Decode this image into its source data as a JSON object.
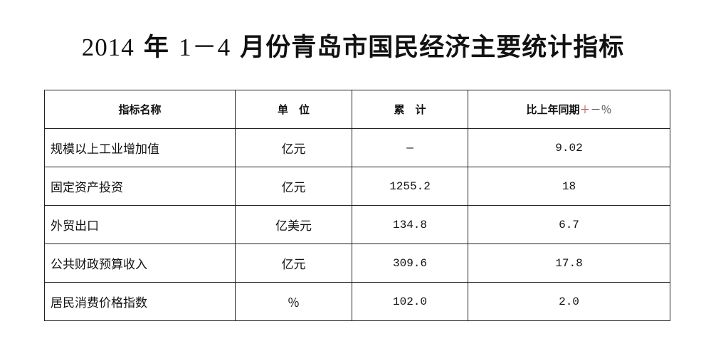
{
  "title": {
    "year": "2014",
    "nian": "年",
    "range": "1－4",
    "rest": "月份青岛市国民经济主要统计指标"
  },
  "table": {
    "headers": [
      "指标名称",
      "单　位",
      "累　计",
      "比上年同期"
    ],
    "header_suffix_plus": "＋",
    "header_suffix_rest": "－％",
    "rows": [
      {
        "name": "规模以上工业增加值",
        "unit": "亿元",
        "total": "—",
        "change": "9.02"
      },
      {
        "name": "固定资产投资",
        "unit": "亿元",
        "total": "1255.2",
        "change": "18"
      },
      {
        "name": "外贸出口",
        "unit": "亿美元",
        "total": "134.8",
        "change": "6.7"
      },
      {
        "name": "公共财政预算收入",
        "unit": "亿元",
        "total": "309.6",
        "change": "17.8"
      },
      {
        "name": "居民消费价格指数",
        "unit": "％",
        "total": "102.0",
        "change": "2.0"
      }
    ]
  }
}
